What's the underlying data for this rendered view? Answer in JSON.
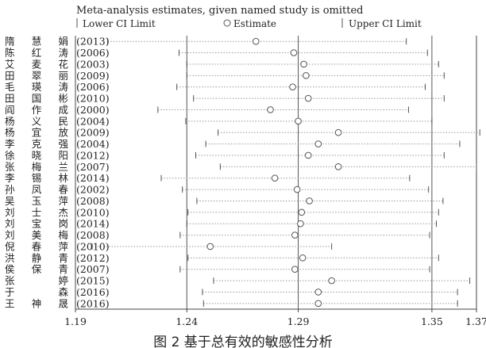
{
  "chart_data": {
    "type": "forest",
    "title": "Meta-analysis estimates, given named study is omitted",
    "legend": {
      "lower": "Lower CI Limit",
      "estimate": "Estimate",
      "upper": "Upper CI Limit",
      "placement": "top"
    },
    "x_ticks": [
      1.19,
      1.24,
      1.29,
      1.35,
      1.37
    ],
    "xlim": [
      1.19,
      1.37
    ],
    "reference_lines": [
      1.24,
      1.29,
      1.35
    ],
    "studies": [
      {
        "name": "隋 慧 娟",
        "year": "(2013)",
        "estimate": 1.271,
        "lower": 1.2045,
        "upper": 1.3385
      },
      {
        "name": "陈 红 涛",
        "year": "(2006)",
        "estimate": 1.288,
        "lower": 1.2365,
        "upper": 1.348
      },
      {
        "name": "艾 麦 花",
        "year": "(2003)",
        "estimate": 1.2925,
        "lower": 1.24,
        "upper": 1.353
      },
      {
        "name": "田 翠 丽",
        "year": "(2009)",
        "estimate": 1.2935,
        "lower": 1.24,
        "upper": 1.3555
      },
      {
        "name": "毛 瑛 涛",
        "year": "(2006)",
        "estimate": 1.2875,
        "lower": 1.2355,
        "upper": 1.347
      },
      {
        "name": "田 国 彬",
        "year": "(2010)",
        "estimate": 1.2945,
        "lower": 1.243,
        "upper": 1.3555
      },
      {
        "name": "阎 作 成",
        "year": "(2000)",
        "estimate": 1.2775,
        "lower": 1.227,
        "upper": 1.3395
      },
      {
        "name": "杨 义 民",
        "year": "(2004)",
        "estimate": 1.29,
        "lower": 1.2395,
        "upper": 1.35
      },
      {
        "name": "杨 宜 放",
        "year": "(2009)",
        "estimate": 1.308,
        "lower": 1.254,
        "upper": 1.3715
      },
      {
        "name": "李 克 强",
        "year": "(2004)",
        "estimate": 1.299,
        "lower": 1.2485,
        "upper": 1.3625
      },
      {
        "name": "徐 晓 阳",
        "year": "(2012)",
        "estimate": 1.2945,
        "lower": 1.244,
        "upper": 1.3555
      },
      {
        "name": "张 梅 兰",
        "year": "(2007)",
        "estimate": 1.308,
        "lower": 1.255,
        "upper": 1.37
      },
      {
        "name": "李 锡 林",
        "year": "(2014)",
        "estimate": 1.2795,
        "lower": 1.2285,
        "upper": 1.34
      },
      {
        "name": "孙 凤 春",
        "year": "(2002)",
        "estimate": 1.2895,
        "lower": 1.238,
        "upper": 1.3485
      },
      {
        "name": "吴 玉 萍",
        "year": "(2008)",
        "estimate": 1.295,
        "lower": 1.2445,
        "upper": 1.355
      },
      {
        "name": "刘 士 杰",
        "year": "(2010)",
        "estimate": 1.2915,
        "lower": 1.2405,
        "upper": 1.353
      },
      {
        "name": "刘 宝 岗",
        "year": "(2014)",
        "estimate": 1.291,
        "lower": 1.24,
        "upper": 1.352
      },
      {
        "name": "刘 美 梅",
        "year": "(2008)",
        "estimate": 1.2885,
        "lower": 1.237,
        "upper": 1.349
      },
      {
        "name": "倪 春 萍",
        "year": "(2010)",
        "estimate": 1.2505,
        "lower": 1.1975,
        "upper": 1.305
      },
      {
        "name": "洪 静 青",
        "year": "(2012)",
        "estimate": 1.292,
        "lower": 1.2405,
        "upper": 1.353
      },
      {
        "name": "侯 保 青",
        "year": "(2007)",
        "estimate": 1.2885,
        "lower": 1.237,
        "upper": 1.349
      },
      {
        "name": "张 婷",
        "year": "(2015)",
        "estimate": 1.305,
        "lower": 1.252,
        "upper": 1.367
      },
      {
        "name": "于 森",
        "year": "(2016)",
        "estimate": 1.299,
        "lower": 1.247,
        "upper": 1.3615
      },
      {
        "name": "王 神 晟",
        "year": "(2016)",
        "estimate": 1.299,
        "lower": 1.2475,
        "upper": 1.3615
      }
    ]
  },
  "caption": "图 2 基于总有效的敏感性分析"
}
